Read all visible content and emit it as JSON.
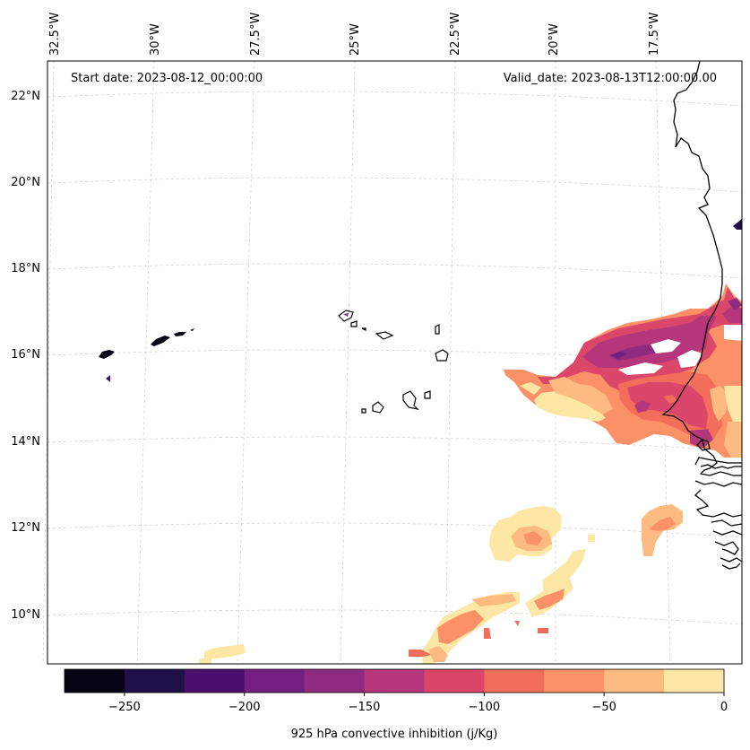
{
  "map": {
    "start_label": "Start date: 2023-08-12_00:00:00",
    "valid_label": "Valid_date: 2023-08-13T12:00:00.00",
    "lon_labels": [
      "32.5°W",
      "30°W",
      "27.5°W",
      "25°W",
      "22.5°W",
      "20°W",
      "17.5°W"
    ],
    "lat_labels": [
      "22°N",
      "20°N",
      "18°N",
      "16°N",
      "14°N",
      "12°N",
      "10°N"
    ],
    "projection": "conic (lat/lon gridlines)",
    "region": "Cabo Verde and West African coast (Senegal, Mauritania)"
  },
  "colorbar": {
    "label": "925 hPa convective inhibition (j/Kg)",
    "tick_labels": [
      "−250",
      "−200",
      "−150",
      "−100",
      "−50",
      "0"
    ],
    "levels": [
      -275,
      -250,
      -225,
      -200,
      -175,
      -150,
      -125,
      -100,
      -75,
      -50,
      -25,
      0
    ],
    "colors": [
      "#060413",
      "#1f1147",
      "#4b0f6e",
      "#721f81",
      "#8e2a7f",
      "#b5367a",
      "#da476b",
      "#f26e5b",
      "#fc9067",
      "#fdbb81",
      "#fde7a4"
    ],
    "colormap": "magma"
  }
}
